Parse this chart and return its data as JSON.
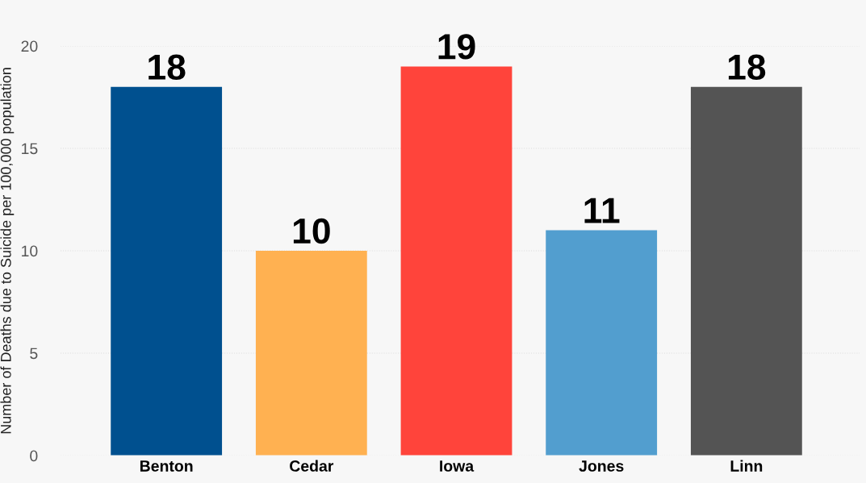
{
  "chart_data": {
    "type": "bar",
    "ylabel": "Number of Deaths due to Suicide per 100,000 population",
    "categories": [
      "Benton",
      "Cedar",
      "Iowa",
      "Jones",
      "Linn"
    ],
    "values": [
      18,
      10,
      19,
      11,
      18
    ],
    "colors": [
      "#00508f",
      "#ffb151",
      "#ff443b",
      "#529ecf",
      "#545454"
    ],
    "ylim": [
      0,
      20
    ],
    "yticks": [
      0,
      5,
      10,
      15,
      20
    ],
    "grid": "y",
    "data_labels": true
  }
}
